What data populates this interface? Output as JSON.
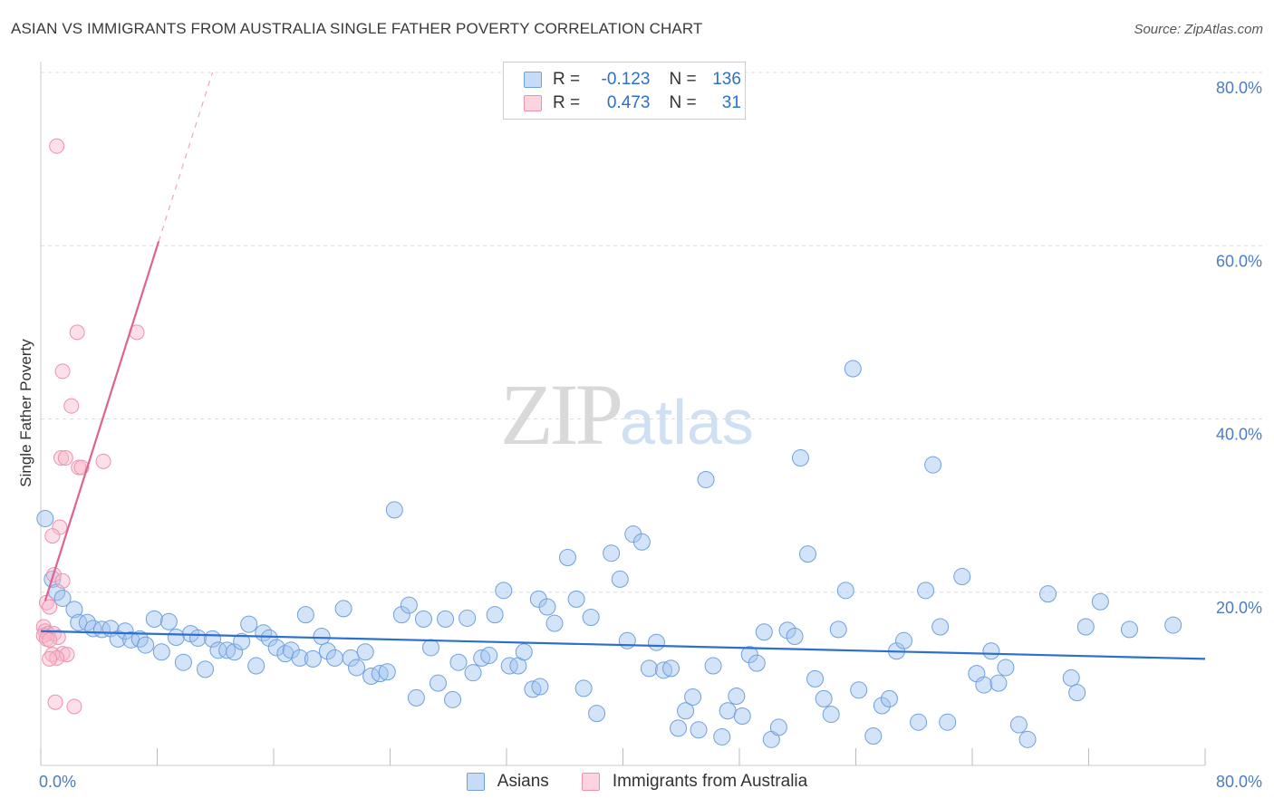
{
  "title": "ASIAN VS IMMIGRANTS FROM AUSTRALIA SINGLE FATHER POVERTY CORRELATION CHART",
  "source": "Source: ZipAtlas.com",
  "watermark": {
    "zip": "ZIP",
    "atlas": "atlas"
  },
  "legend": {
    "rows": [
      {
        "r_label": "R =",
        "r_value": "-0.123",
        "n_label": "N =",
        "n_value": "136"
      },
      {
        "r_label": "R =",
        "r_value": "0.473",
        "n_label": "N =",
        "n_value": "31"
      }
    ]
  },
  "colors": {
    "asian_fill": "rgba(160,196,240,0.45)",
    "asian_stroke": "#6fa0de",
    "asian_line": "#2b6fcf",
    "aus_fill": "rgba(248,184,204,0.45)",
    "aus_stroke": "#ee91ad",
    "aus_line": "#e0628f",
    "grid": "#dddddd",
    "axis_label": "#4a7cc7"
  },
  "chart_data": {
    "type": "scatter",
    "title": "ASIAN VS IMMIGRANTS FROM AUSTRALIA SINGLE FATHER POVERTY CORRELATION CHART",
    "xlabel": "",
    "ylabel": "Single Father Poverty",
    "xlim": [
      0,
      80
    ],
    "ylim": [
      0,
      80
    ],
    "x_tick_labels": [
      "0.0%",
      "80.0%"
    ],
    "y_tick_labels": [
      "20.0%",
      "40.0%",
      "60.0%",
      "80.0%"
    ],
    "y_ticks": [
      20,
      40,
      60,
      80
    ],
    "x_minor_ticks": [
      0,
      8,
      16,
      24,
      32,
      40,
      48,
      56,
      64,
      72,
      80
    ],
    "legend_position": "bottom",
    "series": [
      {
        "name": "Asians",
        "r": -0.123,
        "n": 136,
        "trend": {
          "x0": 0,
          "y0": 15.5,
          "x1": 80,
          "y1": 12.3
        },
        "points": [
          [
            0.3,
            28.5
          ],
          [
            0.8,
            21.5
          ],
          [
            1.1,
            20.0
          ],
          [
            1.5,
            19.3
          ],
          [
            2.3,
            18.0
          ],
          [
            2.6,
            16.5
          ],
          [
            3.2,
            16.5
          ],
          [
            3.6,
            15.8
          ],
          [
            4.2,
            15.7
          ],
          [
            4.8,
            15.8
          ],
          [
            5.3,
            14.6
          ],
          [
            5.8,
            15.5
          ],
          [
            6.2,
            14.5
          ],
          [
            6.8,
            14.6
          ],
          [
            7.2,
            13.9
          ],
          [
            7.8,
            16.9
          ],
          [
            8.3,
            13.1
          ],
          [
            8.8,
            16.6
          ],
          [
            9.3,
            14.8
          ],
          [
            9.8,
            11.9
          ],
          [
            10.3,
            15.2
          ],
          [
            10.8,
            14.7
          ],
          [
            11.3,
            11.1
          ],
          [
            11.8,
            14.6
          ],
          [
            12.2,
            13.3
          ],
          [
            12.8,
            13.3
          ],
          [
            13.3,
            13.1
          ],
          [
            13.8,
            14.3
          ],
          [
            14.3,
            16.3
          ],
          [
            14.8,
            11.5
          ],
          [
            15.3,
            15.3
          ],
          [
            15.7,
            14.7
          ],
          [
            16.2,
            13.6
          ],
          [
            16.8,
            12.9
          ],
          [
            17.2,
            13.3
          ],
          [
            17.8,
            12.4
          ],
          [
            18.2,
            17.4
          ],
          [
            18.7,
            12.3
          ],
          [
            19.3,
            14.9
          ],
          [
            19.7,
            13.2
          ],
          [
            20.2,
            12.4
          ],
          [
            20.8,
            18.1
          ],
          [
            21.3,
            12.4
          ],
          [
            21.7,
            11.3
          ],
          [
            22.3,
            13.1
          ],
          [
            22.7,
            10.3
          ],
          [
            23.3,
            10.6
          ],
          [
            23.8,
            10.8
          ],
          [
            24.3,
            29.5
          ],
          [
            24.8,
            17.4
          ],
          [
            25.3,
            18.5
          ],
          [
            25.8,
            7.8
          ],
          [
            26.3,
            16.9
          ],
          [
            26.8,
            13.6
          ],
          [
            27.3,
            9.5
          ],
          [
            27.8,
            16.9
          ],
          [
            28.3,
            7.6
          ],
          [
            28.7,
            11.9
          ],
          [
            29.3,
            17.0
          ],
          [
            29.7,
            10.7
          ],
          [
            30.3,
            12.4
          ],
          [
            30.8,
            12.7
          ],
          [
            31.2,
            17.4
          ],
          [
            31.8,
            20.2
          ],
          [
            32.2,
            11.5
          ],
          [
            32.8,
            11.5
          ],
          [
            33.2,
            13.1
          ],
          [
            33.8,
            8.8
          ],
          [
            34.2,
            19.2
          ],
          [
            34.8,
            18.3
          ],
          [
            34.3,
            9.1
          ],
          [
            35.3,
            16.4
          ],
          [
            36.2,
            24.0
          ],
          [
            36.8,
            19.2
          ],
          [
            37.3,
            8.9
          ],
          [
            37.8,
            17.1
          ],
          [
            38.2,
            6.0
          ],
          [
            39.2,
            24.5
          ],
          [
            39.8,
            21.5
          ],
          [
            40.3,
            14.4
          ],
          [
            40.7,
            26.7
          ],
          [
            41.3,
            25.8
          ],
          [
            41.8,
            11.2
          ],
          [
            42.3,
            14.2
          ],
          [
            42.8,
            11.0
          ],
          [
            43.3,
            11.2
          ],
          [
            43.8,
            4.3
          ],
          [
            44.3,
            6.3
          ],
          [
            44.8,
            7.9
          ],
          [
            45.2,
            4.1
          ],
          [
            45.7,
            33.0
          ],
          [
            46.2,
            11.5
          ],
          [
            46.8,
            3.3
          ],
          [
            47.2,
            6.3
          ],
          [
            47.8,
            8.0
          ],
          [
            48.2,
            5.7
          ],
          [
            48.7,
            12.8
          ],
          [
            49.2,
            11.8
          ],
          [
            49.7,
            15.4
          ],
          [
            50.2,
            3.0
          ],
          [
            50.7,
            4.4
          ],
          [
            51.3,
            15.6
          ],
          [
            51.8,
            14.9
          ],
          [
            52.2,
            35.5
          ],
          [
            52.7,
            24.4
          ],
          [
            53.2,
            10.0
          ],
          [
            53.8,
            7.7
          ],
          [
            54.3,
            5.9
          ],
          [
            54.8,
            15.7
          ],
          [
            55.3,
            20.2
          ],
          [
            55.8,
            45.8
          ],
          [
            56.2,
            8.7
          ],
          [
            57.2,
            3.4
          ],
          [
            57.8,
            6.9
          ],
          [
            58.3,
            7.7
          ],
          [
            58.8,
            13.2
          ],
          [
            59.3,
            14.4
          ],
          [
            60.3,
            5.0
          ],
          [
            60.8,
            20.2
          ],
          [
            61.3,
            34.7
          ],
          [
            61.8,
            16.0
          ],
          [
            62.3,
            5.0
          ],
          [
            63.3,
            21.8
          ],
          [
            64.3,
            10.6
          ],
          [
            64.8,
            9.3
          ],
          [
            65.3,
            13.2
          ],
          [
            65.8,
            9.5
          ],
          [
            66.3,
            11.3
          ],
          [
            67.2,
            4.7
          ],
          [
            67.8,
            3.0
          ],
          [
            69.2,
            19.8
          ],
          [
            70.8,
            10.1
          ],
          [
            71.2,
            8.4
          ],
          [
            71.8,
            16.0
          ],
          [
            72.8,
            18.9
          ],
          [
            74.8,
            15.7
          ],
          [
            77.8,
            16.2
          ]
        ]
      },
      {
        "name": "Immigrants from Australia",
        "r": 0.473,
        "n": 31,
        "trend": {
          "x0": 0.3,
          "y0": 19.0,
          "x1": 8.1,
          "y1": 60.5,
          "dash_x1": 11.8,
          "dash_y1": 80.0
        },
        "points": [
          [
            1.1,
            71.5
          ],
          [
            2.5,
            50.0
          ],
          [
            6.6,
            50.0
          ],
          [
            1.5,
            45.5
          ],
          [
            2.1,
            41.5
          ],
          [
            1.4,
            35.5
          ],
          [
            1.7,
            35.5
          ],
          [
            2.6,
            34.4
          ],
          [
            2.8,
            34.4
          ],
          [
            4.3,
            35.1
          ],
          [
            1.3,
            27.5
          ],
          [
            0.8,
            26.5
          ],
          [
            0.9,
            22.0
          ],
          [
            1.5,
            21.3
          ],
          [
            0.4,
            18.8
          ],
          [
            0.6,
            18.3
          ],
          [
            0.2,
            16.0
          ],
          [
            0.3,
            15.5
          ],
          [
            0.5,
            15.2
          ],
          [
            0.9,
            15.2
          ],
          [
            0.2,
            15.0
          ],
          [
            1.2,
            14.8
          ],
          [
            0.4,
            14.6
          ],
          [
            0.6,
            14.5
          ],
          [
            1.5,
            12.9
          ],
          [
            0.8,
            12.8
          ],
          [
            1.8,
            12.8
          ],
          [
            1.1,
            12.4
          ],
          [
            0.6,
            12.3
          ],
          [
            1.0,
            7.3
          ],
          [
            2.3,
            6.8
          ]
        ]
      }
    ]
  }
}
